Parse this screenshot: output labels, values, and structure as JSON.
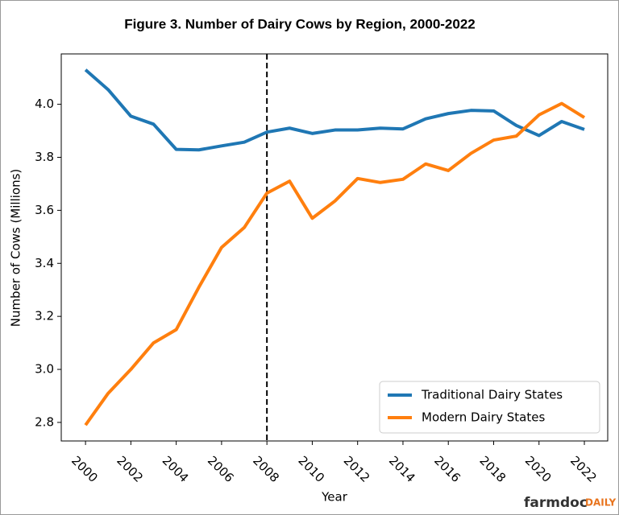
{
  "chart_data": {
    "type": "line",
    "title": "Figure 3. Number of Dairy Cows by Region, 2000-2022",
    "x_label": "Year",
    "y_label": "Number of Cows (Millions)",
    "x": [
      2000,
      2001,
      2002,
      2003,
      2004,
      2005,
      2006,
      2007,
      2008,
      2009,
      2010,
      2011,
      2012,
      2013,
      2014,
      2015,
      2016,
      2017,
      2018,
      2019,
      2020,
      2021,
      2022
    ],
    "series": [
      {
        "name": "Traditional Dairy States",
        "color": "#1f77b4",
        "values": [
          4.13,
          4.055,
          3.955,
          3.925,
          3.83,
          3.828,
          3.843,
          3.857,
          3.895,
          3.91,
          3.89,
          3.903,
          3.903,
          3.91,
          3.907,
          3.945,
          3.965,
          3.977,
          3.975,
          3.92,
          3.882,
          3.935,
          3.905
        ]
      },
      {
        "name": "Modern Dairy States",
        "color": "#ff7f0e",
        "values": [
          2.79,
          2.91,
          3.0,
          3.1,
          3.15,
          3.31,
          3.46,
          3.535,
          3.665,
          3.71,
          3.57,
          3.635,
          3.72,
          3.705,
          3.717,
          3.775,
          3.75,
          3.815,
          3.865,
          3.88,
          3.96,
          4.003,
          3.95
        ]
      }
    ],
    "xlim": [
      1998.93,
      2023.03
    ],
    "xticks": [
      2000,
      2002,
      2004,
      2006,
      2008,
      2010,
      2012,
      2014,
      2016,
      2018,
      2020,
      2022
    ],
    "ylim": [
      2.73,
      4.19
    ],
    "yticks": [
      2.8,
      {
        "value": 3,
        "label": "3.0"
      },
      3.2,
      3.4,
      3.6,
      3.8,
      {
        "value": 4,
        "label": "4.0"
      }
    ],
    "vline": 2008,
    "legend": "lower right",
    "logo": [
      "farmdoc",
      "DAILY"
    ]
  }
}
